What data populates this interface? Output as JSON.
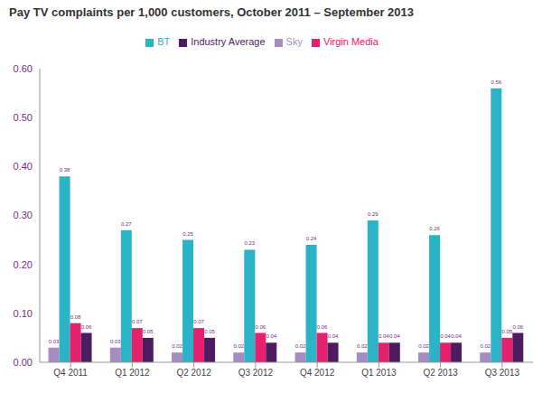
{
  "chart_data": {
    "type": "bar",
    "title": "Pay TV complaints per 1,000 customers, October 2011 – September 2013",
    "categories": [
      "Q4 2011",
      "Q1 2012",
      "Q2 2012",
      "Q3 2012",
      "Q4 2012",
      "Q1 2013",
      "Q2 2013",
      "Q3 2013"
    ],
    "series": [
      {
        "name": "Sky",
        "color": "#a58cc2",
        "values": [
          0.03,
          0.03,
          0.02,
          0.02,
          0.02,
          0.02,
          0.02,
          0.02
        ]
      },
      {
        "name": "BT",
        "color": "#2bb4c6",
        "values": [
          0.38,
          0.27,
          0.25,
          0.23,
          0.24,
          0.29,
          0.26,
          0.56
        ]
      },
      {
        "name": "Virgin Media",
        "color": "#e5206c",
        "values": [
          0.08,
          0.07,
          0.07,
          0.06,
          0.06,
          0.04,
          0.04,
          0.05
        ]
      },
      {
        "name": "Industry Average",
        "color": "#4d1c60",
        "values": [
          0.06,
          0.05,
          0.05,
          0.04,
          0.04,
          0.04,
          0.04,
          0.06
        ]
      }
    ],
    "ylim": [
      0,
      0.6
    ],
    "yticks": [
      {
        "value": 0,
        "label": "0.00"
      },
      {
        "value": 0.1,
        "label": "0.10"
      },
      {
        "value": 0.2,
        "label": "0.20"
      },
      {
        "value": 0.3,
        "label": "0.30"
      },
      {
        "value": 0.4,
        "label": "0.40"
      },
      {
        "value": 0.5,
        "label": "0.50"
      },
      {
        "value": 0.6,
        "label": "0.60"
      }
    ],
    "grid": false,
    "legend": "top",
    "data_labels": true
  }
}
